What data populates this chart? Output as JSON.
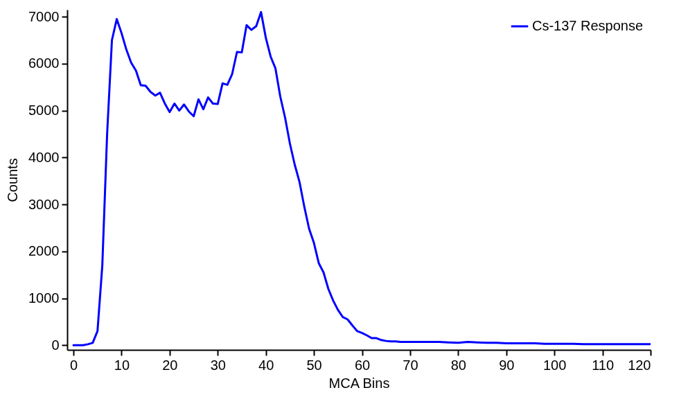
{
  "chart_data": {
    "type": "line",
    "xlabel": "MCA Bins",
    "ylabel": "Counts",
    "x": [
      0,
      1,
      2,
      3,
      4,
      5,
      6,
      7,
      8,
      9,
      10,
      11,
      12,
      13,
      14,
      15,
      16,
      17,
      18,
      19,
      20,
      21,
      22,
      23,
      24,
      25,
      26,
      27,
      28,
      29,
      30,
      31,
      32,
      33,
      34,
      35,
      36,
      37,
      38,
      39,
      40,
      41,
      42,
      43,
      44,
      45,
      46,
      47,
      48,
      49,
      50,
      51,
      52,
      53,
      54,
      55,
      56,
      57,
      58,
      59,
      60,
      61,
      62,
      63,
      64,
      65,
      66,
      67,
      68,
      69,
      70,
      72,
      74,
      76,
      78,
      80,
      82,
      84,
      86,
      88,
      90,
      92,
      94,
      96,
      98,
      100,
      102,
      104,
      106,
      108,
      110,
      112,
      114,
      116,
      118,
      120
    ],
    "series": [
      {
        "name": "Cs-137 Response",
        "color": "#0000ff",
        "values": [
          0,
          0,
          0,
          20,
          50,
          300,
          1700,
          4500,
          6500,
          6950,
          6650,
          6300,
          6020,
          5850,
          5540,
          5530,
          5400,
          5320,
          5380,
          5150,
          4970,
          5150,
          5000,
          5130,
          4980,
          4880,
          5240,
          5030,
          5280,
          5150,
          5140,
          5580,
          5550,
          5780,
          6250,
          6240,
          6820,
          6720,
          6800,
          7100,
          6550,
          6150,
          5900,
          5300,
          4850,
          4300,
          3850,
          3480,
          2950,
          2480,
          2180,
          1750,
          1550,
          1200,
          950,
          750,
          600,
          550,
          420,
          300,
          260,
          210,
          150,
          150,
          110,
          90,
          80,
          80,
          70,
          70,
          70,
          70,
          70,
          70,
          60,
          50,
          70,
          60,
          50,
          50,
          40,
          40,
          40,
          40,
          30,
          30,
          30,
          30,
          20,
          20,
          20,
          20,
          20,
          20,
          20,
          20
        ]
      }
    ],
    "xlim": [
      -1.3,
      120
    ],
    "xticks": [
      0,
      10,
      20,
      30,
      40,
      50,
      60,
      70,
      80,
      90,
      100,
      110,
      120
    ],
    "ylim": [
      -100,
      7150
    ],
    "yticks": [
      0,
      1000,
      2000,
      3000,
      4000,
      5000,
      6000,
      7000
    ],
    "legend": "top right",
    "grid": false,
    "line_style": "solid",
    "marker": "none"
  }
}
